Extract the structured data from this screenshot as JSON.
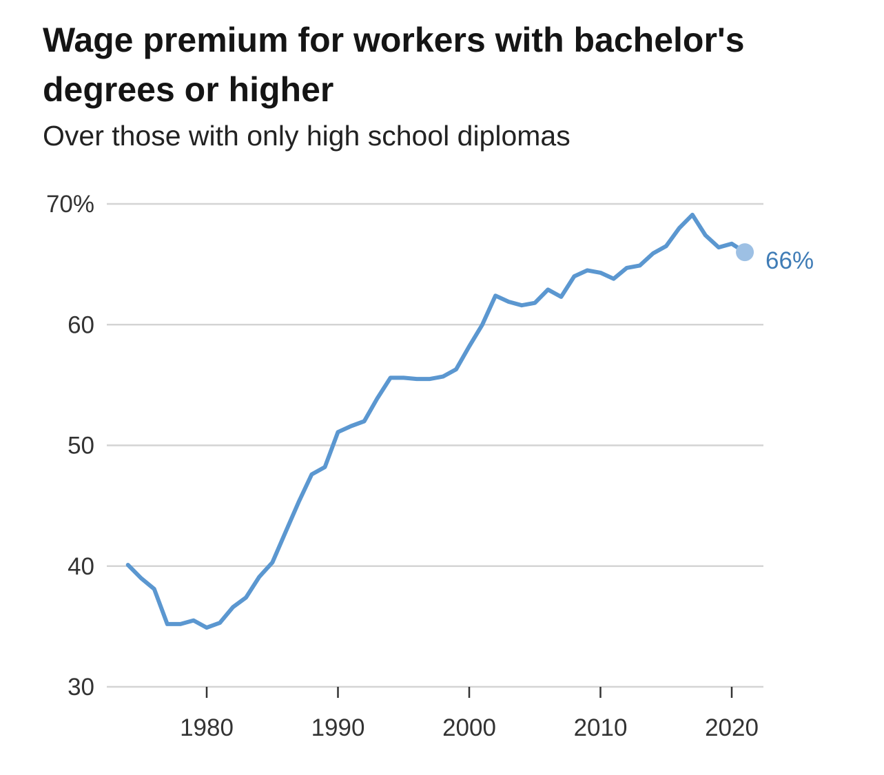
{
  "chart_data": {
    "type": "line",
    "title": "Wage premium for workers with bachelor's degrees or higher",
    "subtitle": "Over those with only high school diplomas",
    "xlabel": "",
    "ylabel": "",
    "xlim": [
      1973,
      2022
    ],
    "ylim": [
      30,
      70
    ],
    "x_ticks": [
      {
        "value": 1980,
        "label": "1980"
      },
      {
        "value": 1990,
        "label": "1990"
      },
      {
        "value": 2000,
        "label": "2000"
      },
      {
        "value": 2010,
        "label": "2010"
      },
      {
        "value": 2020,
        "label": "2020"
      }
    ],
    "y_ticks": [
      {
        "value": 30,
        "label": "30"
      },
      {
        "value": 40,
        "label": "40"
      },
      {
        "value": 50,
        "label": "50"
      },
      {
        "value": 60,
        "label": "60"
      },
      {
        "value": 70,
        "label": "70%"
      }
    ],
    "grid": "horizontal",
    "legend": "none",
    "series": [
      {
        "color": "#5b97d0",
        "x": [
          1974,
          1975,
          1976,
          1977,
          1978,
          1979,
          1980,
          1981,
          1982,
          1983,
          1984,
          1985,
          1986,
          1987,
          1988,
          1989,
          1990,
          1991,
          1992,
          1993,
          1994,
          1995,
          1996,
          1997,
          1998,
          1999,
          2000,
          2001,
          2002,
          2003,
          2004,
          2005,
          2006,
          2007,
          2008,
          2009,
          2010,
          2011,
          2012,
          2013,
          2014,
          2015,
          2016,
          2017,
          2018,
          2019,
          2020,
          2021
        ],
        "values": [
          40.1,
          39.0,
          38.1,
          35.2,
          35.2,
          35.5,
          34.9,
          35.3,
          36.6,
          37.4,
          39.1,
          40.3,
          42.8,
          45.3,
          47.6,
          48.2,
          51.1,
          51.6,
          52.0,
          53.9,
          55.6,
          55.6,
          55.5,
          55.5,
          55.7,
          56.3,
          58.2,
          60.0,
          62.4,
          61.9,
          61.6,
          61.8,
          62.9,
          62.3,
          64.0,
          64.5,
          64.3,
          63.8,
          64.7,
          64.9,
          65.9,
          66.5,
          68.0,
          69.1,
          67.4,
          66.4,
          66.7,
          66.0
        ]
      }
    ],
    "end_label": "66%"
  }
}
